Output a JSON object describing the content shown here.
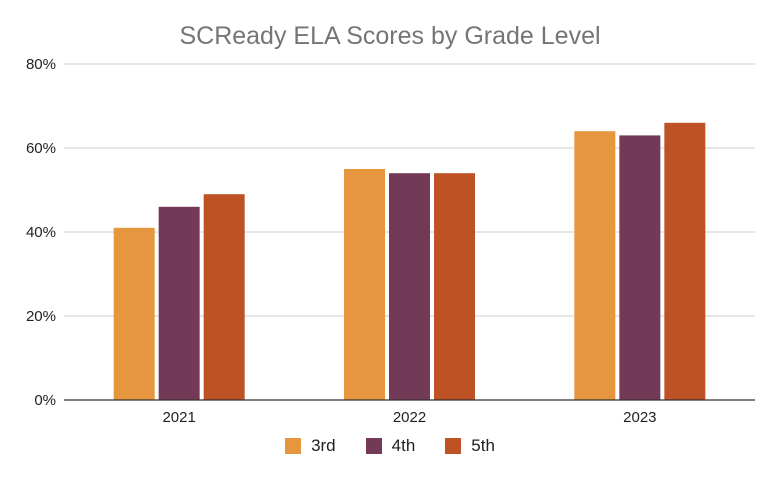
{
  "chart_data": {
    "type": "bar",
    "title": "SCReady ELA Scores by Grade Level",
    "categories": [
      "2021",
      "2022",
      "2023"
    ],
    "series": [
      {
        "name": "3rd",
        "color": "#E6963E",
        "values": [
          41,
          55,
          64
        ]
      },
      {
        "name": "4th",
        "color": "#733A58",
        "values": [
          46,
          54,
          63
        ]
      },
      {
        "name": "5th",
        "color": "#BE5225",
        "values": [
          49,
          54,
          66
        ]
      }
    ],
    "ylim": [
      0,
      80
    ],
    "yticks": [
      0,
      20,
      40,
      60,
      80
    ],
    "ytick_labels": [
      "0%",
      "20%",
      "40%",
      "60%",
      "80%"
    ],
    "xlabel": "",
    "ylabel": "",
    "grid": true,
    "legend_position": "bottom"
  }
}
